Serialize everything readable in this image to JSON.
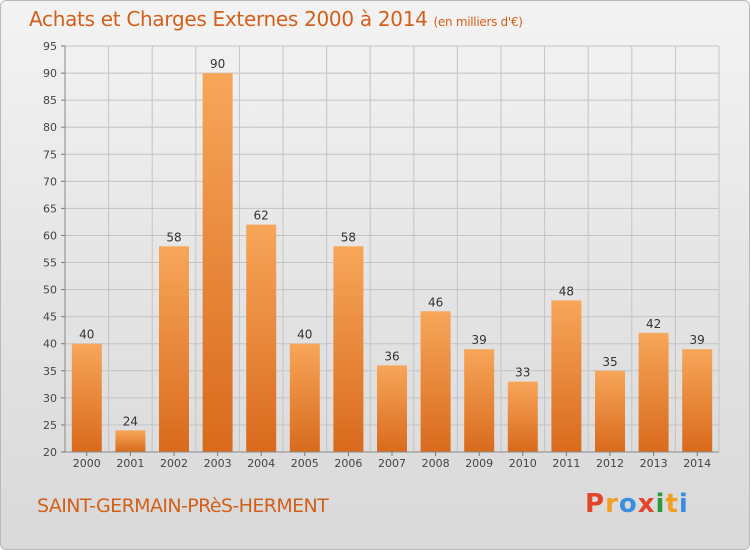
{
  "chart_data": {
    "type": "bar",
    "title": "Achats et Charges Externes 2000 à 2014",
    "subtitle": "(en milliers d'€)",
    "categories": [
      "2000",
      "2001",
      "2002",
      "2003",
      "2004",
      "2005",
      "2006",
      "2007",
      "2008",
      "2009",
      "2010",
      "2011",
      "2012",
      "2013",
      "2014"
    ],
    "values": [
      40,
      24,
      58,
      90,
      62,
      40,
      58,
      36,
      46,
      39,
      33,
      48,
      35,
      42,
      39
    ],
    "ylim": [
      20,
      95
    ],
    "yticks": [
      20,
      25,
      30,
      35,
      40,
      45,
      50,
      55,
      60,
      65,
      70,
      75,
      80,
      85,
      90,
      95
    ],
    "grid": true,
    "bar_color_top": "#f7a65a",
    "bar_color_bottom": "#d96a1c"
  },
  "footer": {
    "commune": "SAINT-GERMAIN-PRèS-HERMENT",
    "logo_text": "Proxiti",
    "logo_colors": [
      "#e2452a",
      "#f0a020",
      "#3a8ee0",
      "#e2452a",
      "#2a9a3a",
      "#f0a020",
      "#3a8ee0"
    ]
  }
}
